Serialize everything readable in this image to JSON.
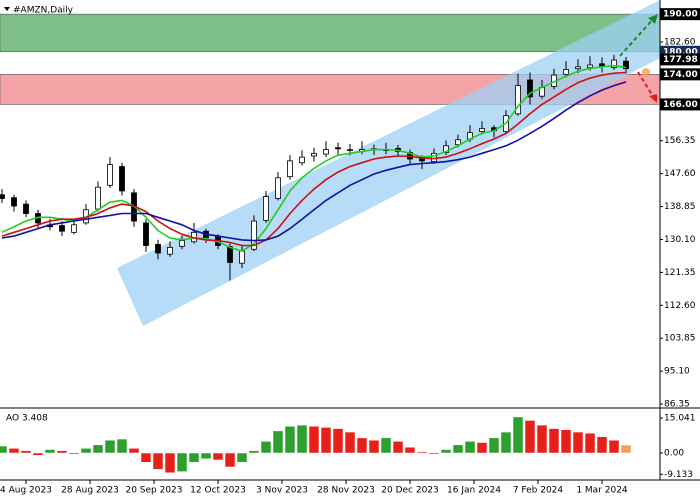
{
  "chart_data": {
    "type": "candlestick",
    "title": "#AMZN,Daily",
    "x": [
      0,
      3,
      6,
      9,
      12,
      15,
      18,
      21,
      24,
      27,
      30,
      33,
      36,
      39,
      42,
      45,
      48,
      51,
      54,
      57,
      60,
      63,
      66,
      69,
      72,
      75,
      78,
      81,
      84,
      87,
      90,
      93,
      96,
      99,
      102,
      105,
      108,
      111,
      114,
      117,
      120,
      123,
      126,
      129,
      132,
      135,
      138,
      141,
      144,
      147,
      150,
      153,
      156
    ],
    "xlim": [
      -0.5,
      164.5
    ],
    "xticks": [
      {
        "value": 6,
        "label": "4 Aug 2023"
      },
      {
        "value": 22,
        "label": "28 Aug 2023"
      },
      {
        "value": 38,
        "label": "20 Sep 2023"
      },
      {
        "value": 54,
        "label": "12 Oct 2023"
      },
      {
        "value": 70,
        "label": "3 Nov 2023"
      },
      {
        "value": 86,
        "label": "28 Nov 2023"
      },
      {
        "value": 102,
        "label": "20 Dec 2023"
      },
      {
        "value": 118,
        "label": "16 Jan 2024"
      },
      {
        "value": 134,
        "label": "7 Feb 2024"
      },
      {
        "value": 150,
        "label": "1 Mar 2024"
      }
    ],
    "ylim": [
      85.3,
      192.7
    ],
    "yticks": [
      86.35,
      {
        "value": 95.1,
        "label": "95.10"
      },
      103.85,
      {
        "value": 112.6,
        "label": "112.60"
      },
      121.35,
      {
        "value": 130.1,
        "label": "130.10"
      },
      138.85,
      {
        "value": 147.6,
        "label": "147.60"
      },
      156.35,
      {
        "value": 182.6,
        "label": "182.60"
      }
    ],
    "up_color": "#ffffff",
    "down_color": "#000000",
    "ohlc": [
      [
        142,
        143.5,
        139.8,
        141
      ],
      [
        141.2,
        142,
        137.5,
        139
      ],
      [
        139.5,
        140.5,
        136,
        137
      ],
      [
        137,
        138,
        133.2,
        134.5
      ],
      [
        134,
        135.6,
        132.5,
        133.5
      ],
      [
        133.8,
        135,
        131,
        132.3
      ],
      [
        132,
        135.2,
        131.5,
        134
      ],
      [
        134.5,
        139.5,
        134,
        138
      ],
      [
        138.2,
        145.5,
        137.5,
        144
      ],
      [
        144.5,
        152,
        143.8,
        150
      ],
      [
        149.5,
        150.5,
        141.8,
        143
      ],
      [
        142.5,
        143.5,
        133.5,
        135
      ],
      [
        134.5,
        135.5,
        126.8,
        128.5
      ],
      [
        128.8,
        130,
        124.8,
        126.5
      ],
      [
        126.2,
        129.6,
        125.5,
        128
      ],
      [
        128.3,
        131.2,
        127.5,
        129.8
      ],
      [
        129.5,
        134.5,
        129,
        132
      ],
      [
        132.3,
        133,
        129.2,
        130.5
      ],
      [
        130.8,
        131.5,
        127.5,
        128.5
      ],
      [
        128.2,
        129,
        119.2,
        124
      ],
      [
        123.8,
        128.5,
        122.5,
        127
      ],
      [
        127.5,
        136.5,
        127,
        135
      ],
      [
        135.2,
        143,
        134.5,
        141.5
      ],
      [
        141,
        148,
        140.5,
        146.5
      ],
      [
        146.8,
        152.5,
        146,
        151
      ],
      [
        150.5,
        153.8,
        149.8,
        152
      ],
      [
        152.3,
        154.5,
        150.8,
        153
      ],
      [
        152.8,
        156.2,
        152,
        154
      ],
      [
        154.5,
        155.8,
        152.6,
        154.2
      ],
      [
        154,
        155.5,
        152.5,
        154
      ],
      [
        153.5,
        156.2,
        152.8,
        154
      ],
      [
        154.2,
        155.3,
        152.6,
        154
      ],
      [
        153.8,
        155.8,
        152.8,
        154
      ],
      [
        154.3,
        155.2,
        152.4,
        153.5
      ],
      [
        153.2,
        154,
        150.2,
        151.5
      ],
      [
        151.8,
        152.5,
        148.8,
        151
      ],
      [
        150.8,
        154.3,
        150.2,
        153
      ],
      [
        153.2,
        156.4,
        152.5,
        155
      ],
      [
        155.3,
        158,
        154.6,
        156.6
      ],
      [
        156.8,
        160.5,
        156,
        158.5
      ],
      [
        158.8,
        161.5,
        158,
        159.6
      ],
      [
        159.8,
        160.5,
        157.2,
        159
      ],
      [
        158.8,
        164.5,
        158.3,
        163
      ],
      [
        163.5,
        174.2,
        163,
        171
      ],
      [
        172.5,
        174.5,
        166,
        168
      ],
      [
        168.2,
        172.5,
        167.5,
        170.5
      ],
      [
        170.8,
        175.5,
        170,
        173.8
      ],
      [
        174,
        177.5,
        173.2,
        175.3
      ],
      [
        175.5,
        178,
        174.3,
        176
      ],
      [
        175.8,
        178.8,
        175,
        176.5
      ],
      [
        176.8,
        178.5,
        174.5,
        176
      ],
      [
        175.8,
        179.2,
        175.2,
        177.8
      ],
      [
        177.5,
        178.6,
        174.2,
        175.5
      ]
    ],
    "series": [
      {
        "color": "#22cc22",
        "values": [
          132,
          133.5,
          135,
          136,
          136,
          135.5,
          135,
          136,
          138,
          140,
          140.5,
          139,
          136,
          132.5,
          130.5,
          130,
          130.5,
          130.3,
          129.5,
          128,
          127,
          129,
          133,
          138,
          143,
          146.5,
          149,
          151,
          152.5,
          153,
          153.5,
          154,
          154,
          153.8,
          153,
          152,
          152.3,
          153.5,
          155,
          156.8,
          158.3,
          159,
          161,
          165.5,
          169,
          170.5,
          172,
          173.5,
          174.8,
          175.6,
          176,
          176.3,
          175.8
        ]
      },
      {
        "color": "#cc1111",
        "values": [
          131,
          132,
          133,
          134,
          135,
          135.5,
          135.5,
          136,
          137,
          138.5,
          139.5,
          139,
          137.5,
          135,
          133,
          131.5,
          130.5,
          130,
          129.8,
          129.3,
          128.5,
          128.5,
          130,
          133,
          137,
          140.5,
          143.5,
          146,
          148,
          149.5,
          150.5,
          151.5,
          152,
          152.3,
          152.2,
          151.8,
          151.6,
          152,
          153,
          154.2,
          155.6,
          156.8,
          158.3,
          160.8,
          163.5,
          166,
          168,
          170,
          171.8,
          173,
          173.8,
          174.3,
          174.5
        ]
      },
      {
        "color": "#1111aa",
        "values": [
          130.5,
          131,
          132,
          133,
          134,
          134.5,
          135,
          135.5,
          136,
          136.5,
          137,
          137,
          137,
          136,
          135,
          134,
          132.5,
          131.5,
          131,
          130.5,
          130,
          129.8,
          130,
          131,
          133,
          135.5,
          138,
          140.5,
          142.5,
          144.5,
          146,
          147.5,
          148.5,
          149.3,
          150,
          150.3,
          150.5,
          150.8,
          151.3,
          152,
          153,
          154,
          155,
          156.5,
          158.3,
          160.2,
          162.3,
          164.5,
          166.5,
          168.3,
          169.8,
          171,
          172
        ]
      }
    ],
    "zones": [
      {
        "range": [
          180,
          190
        ],
        "color": "#7dbf86"
      },
      {
        "range": [
          166,
          174
        ],
        "color": "#f4a3a6"
      }
    ],
    "price_labels": [
      {
        "value": 190,
        "label": "190.00",
        "color": "#000000"
      },
      {
        "value": 180,
        "label": "180.00",
        "color": "#1a2a5a"
      },
      {
        "value": 177.98,
        "label": "177.98",
        "color": "#000000"
      },
      {
        "value": 174,
        "label": "174.00",
        "color": "#000000"
      },
      {
        "value": 166,
        "label": "166.00",
        "color": "#000000"
      }
    ],
    "indicator": {
      "label": "AO 3.408",
      "ylim": [
        -10.74,
        18.48
      ],
      "yticks": [
        15.041,
        {
          "value": 0,
          "label": "0.00"
        },
        -9.133
      ],
      "up_color": "#2ca02c",
      "down_color": "#e8201a",
      "last_color": "#f0a050",
      "values": [
        3,
        2,
        1,
        -1,
        1.5,
        1,
        -0.5,
        2,
        3.5,
        5.5,
        6,
        2,
        -4,
        -7,
        -8.5,
        -8,
        -4,
        -2.5,
        -3,
        -6,
        -4,
        1,
        5,
        9.5,
        11.5,
        12,
        11.5,
        11,
        10.5,
        9,
        6.5,
        5.5,
        6.5,
        5,
        2.5,
        0.5,
        -0.5,
        1.5,
        3.5,
        5,
        4.5,
        6.5,
        9,
        15.5,
        14,
        12,
        10.5,
        10,
        9,
        8.5,
        7,
        5.5,
        3.408
      ]
    }
  }
}
